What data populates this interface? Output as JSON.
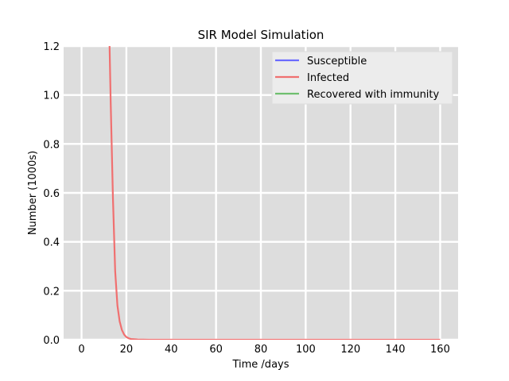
{
  "chart_data": {
    "type": "line",
    "title": "SIR Model Simulation",
    "xlabel": "Time /days",
    "ylabel": "Number (1000s)",
    "xlim": [
      -8,
      168
    ],
    "ylim": [
      0,
      1.2
    ],
    "x_ticks": [
      0,
      20,
      40,
      60,
      80,
      100,
      120,
      140,
      160
    ],
    "y_ticks": [
      0.0,
      0.2,
      0.4,
      0.6,
      0.8,
      1.0,
      1.2
    ],
    "y_tick_labels": [
      "0.0",
      "0.2",
      "0.4",
      "0.6",
      "0.8",
      "1.0",
      "1.2"
    ],
    "grid": true,
    "legend_position": "top-right",
    "series": [
      {
        "name": "Susceptible",
        "color": "#6b6bff",
        "x": [],
        "y": []
      },
      {
        "name": "Infected",
        "color": "#f07070",
        "x": [
          12.5,
          13,
          14,
          15,
          16,
          17,
          18,
          19,
          20,
          21,
          22,
          25,
          30,
          40,
          60,
          80,
          100,
          120,
          140,
          160
        ],
        "y": [
          1.2,
          0.97,
          0.58,
          0.28,
          0.14,
          0.075,
          0.04,
          0.021,
          0.011,
          0.006,
          0.003,
          0.001,
          0.0002,
          5e-05,
          0,
          0,
          0,
          0,
          0,
          0
        ]
      },
      {
        "name": "Recovered with immunity",
        "color": "#6fbf6f",
        "x": [],
        "y": []
      }
    ]
  }
}
